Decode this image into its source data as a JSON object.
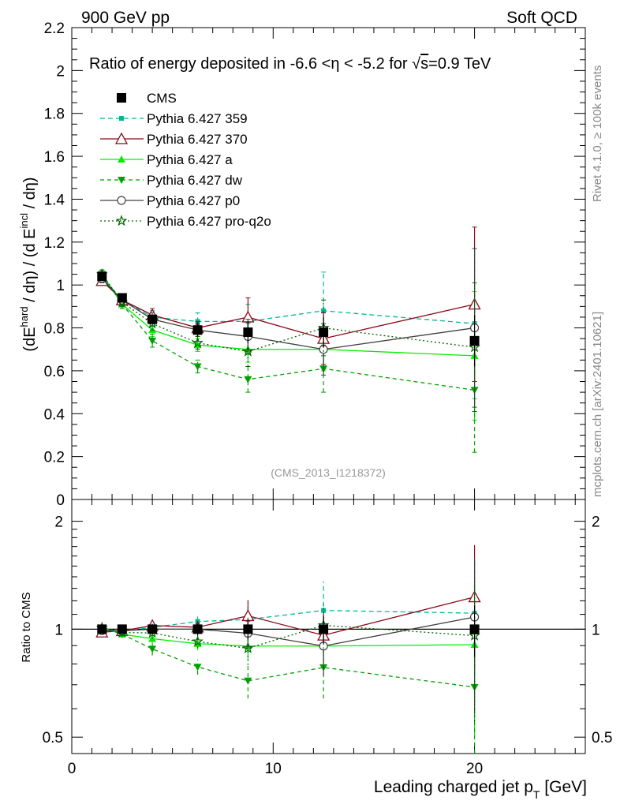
{
  "header": {
    "left": "900 GeV pp",
    "right": "Soft QCD"
  },
  "side": {
    "top": "Rivet 4.1.0, ≥ 100k events",
    "bottom": "mcplots.cern.ch [arXiv:2401.10621]"
  },
  "chart_data": {
    "type": "line",
    "title": "Ratio of energy deposited in -6.6 <η < -5.2 for √s=0.9 TeV",
    "title_parts": {
      "pre": "Ratio of energy deposited in -6.6 <",
      "eta": "η",
      "mid": " < -5.2 for ",
      "root": "√",
      "s": "s",
      "post": "=0.9 TeV"
    },
    "watermark": "(CMS_2013_I1218372)",
    "xlabel": "Leading charged jet p",
    "xlabel_sub": "T",
    "xlabel_unit": " [GeV]",
    "ylabel_parts": [
      "(dE",
      "hard",
      " / dη) / (d E",
      "incl",
      " / dη)"
    ],
    "ratio_ylabel": "Ratio to CMS",
    "xlim": [
      0,
      25.5
    ],
    "ylim": [
      0,
      2.2
    ],
    "ratio_ylim": [
      0.45,
      2.3
    ],
    "ratio_scale": "log",
    "x_ticks": [
      0,
      10,
      20
    ],
    "y_ticks": [
      0,
      0.2,
      0.4,
      0.6,
      0.8,
      1,
      1.2,
      1.4,
      1.6,
      1.8,
      2,
      2.2
    ],
    "y_tick_labels": [
      "0",
      "0.2",
      "0.4",
      "0.6",
      "0.8",
      "1",
      "1.2",
      "1.4",
      "1.6",
      "1.8",
      "2",
      "2.2"
    ],
    "ratio_ticks": [
      0.5,
      1,
      2
    ],
    "ratio_tick_labels": [
      "0.5",
      "1",
      "2"
    ],
    "x": [
      1.5,
      2.5,
      4,
      6.25,
      8.75,
      12.5,
      20
    ],
    "data": {
      "name": "CMS",
      "values": [
        1.04,
        0.94,
        0.84,
        0.79,
        0.78,
        0.78,
        0.74
      ],
      "errors": [
        0.02,
        0.02,
        0.02,
        0.03,
        0.05,
        0.07,
        0.12
      ]
    },
    "series": [
      {
        "name": "Pythia 6.427 359",
        "color": "#00b894",
        "dash": "6,4",
        "marker": "square-small",
        "values": [
          1.04,
          0.93,
          0.85,
          0.83,
          0.83,
          0.88,
          0.82
        ],
        "errors": [
          0.02,
          0.02,
          0.03,
          0.04,
          0.08,
          0.18,
          0.35
        ]
      },
      {
        "name": "Pythia 6.427 370",
        "color": "#8b0a1a",
        "dash": "",
        "marker": "triangle-open",
        "values": [
          1.02,
          0.93,
          0.86,
          0.8,
          0.85,
          0.75,
          0.91
        ],
        "errors": [
          0.02,
          0.02,
          0.03,
          0.03,
          0.09,
          0.12,
          0.36
        ]
      },
      {
        "name": "Pythia 6.427 a",
        "color": "#00ee00",
        "dash": "",
        "marker": "triangle",
        "values": [
          1.05,
          0.91,
          0.79,
          0.72,
          0.7,
          0.7,
          0.67
        ],
        "errors": [
          0.02,
          0.02,
          0.03,
          0.03,
          0.06,
          0.1,
          0.3
        ]
      },
      {
        "name": "Pythia 6.427 dw",
        "color": "#00a000",
        "dash": "5,4",
        "marker": "triangle-down",
        "values": [
          1.05,
          0.91,
          0.74,
          0.62,
          0.56,
          0.61,
          0.51
        ],
        "errors": [
          0.02,
          0.02,
          0.03,
          0.03,
          0.06,
          0.11,
          0.29
        ]
      },
      {
        "name": "Pythia 6.427 p0",
        "color": "#404040",
        "dash": "",
        "marker": "circle-open",
        "values": [
          1.03,
          0.93,
          0.84,
          0.79,
          0.76,
          0.7,
          0.8
        ],
        "errors": [
          0.02,
          0.02,
          0.03,
          0.03,
          0.08,
          0.12,
          0.37
        ]
      },
      {
        "name": "Pythia 6.427 pro-q2o",
        "color": "#006400",
        "dash": "2,3",
        "marker": "star",
        "values": [
          1.05,
          0.92,
          0.82,
          0.73,
          0.69,
          0.8,
          0.71
        ],
        "errors": [
          0.02,
          0.02,
          0.03,
          0.03,
          0.07,
          0.13,
          0.3
        ]
      }
    ]
  }
}
